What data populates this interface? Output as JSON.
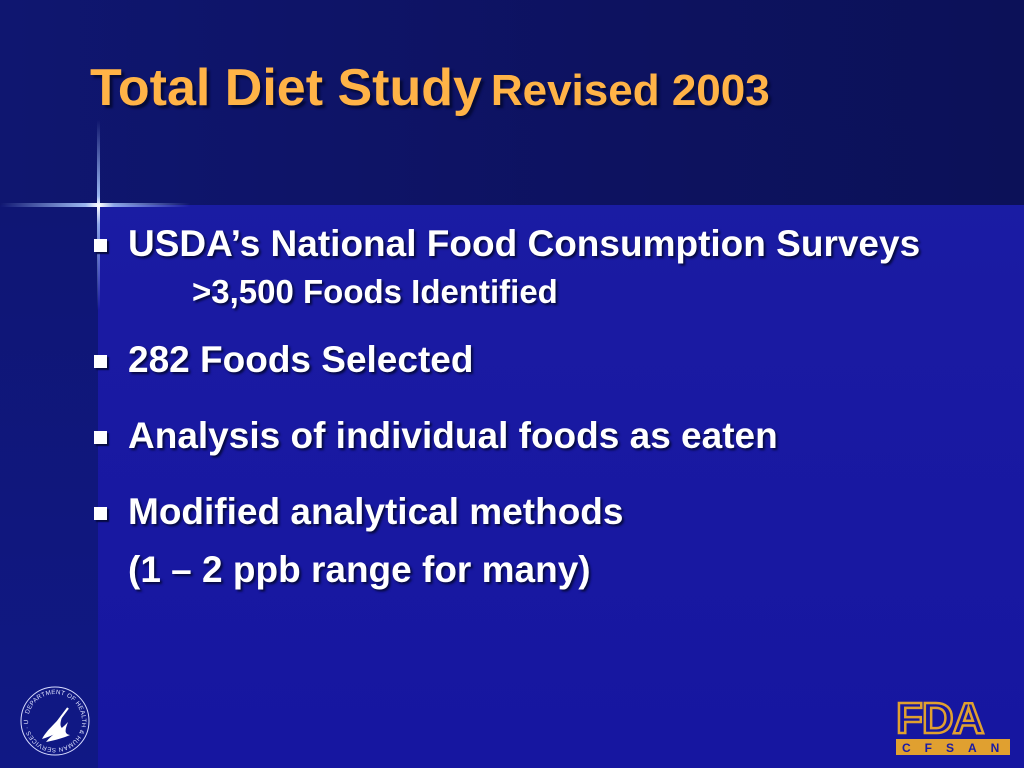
{
  "title": {
    "main": "Total Diet Study",
    "sub": "Revised 2003"
  },
  "bullets": [
    {
      "text": "USDA’s National Food Consumption Surveys",
      "sub": ">3,500 Foods Identified"
    },
    {
      "text": "282 Foods Selected"
    },
    {
      "text": "Analysis of individual foods as eaten"
    },
    {
      "text": "Modified analytical methods",
      "continuation": "(1 – 2 ppb range for many)"
    }
  ],
  "logos": {
    "hhs_seal_text": "DEPARTMENT OF HEALTH & HUMAN SERVICES · USA",
    "fda_text": "FDA",
    "fda_sub": "CFSAN"
  },
  "colors": {
    "background": "#1a1ba6",
    "title": "#ffb347",
    "text": "#ffffff",
    "fda_logo": "#e0a030"
  }
}
